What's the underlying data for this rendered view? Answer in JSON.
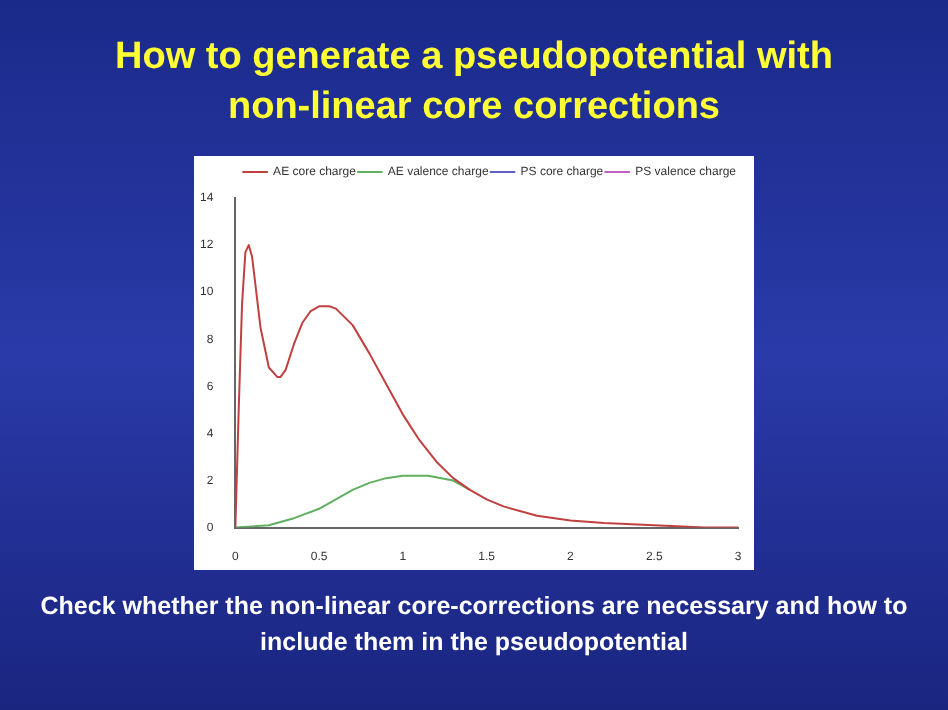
{
  "chart_data": {
    "type": "line",
    "title": "How to generate a pseudopotential with non-linear core corrections",
    "annotations": [
      "Check whether the non-linear core-corrections are necessary and how to include them in the pseudopotential"
    ],
    "xlim": [
      0,
      3
    ],
    "xticks": [
      0,
      0.5,
      1,
      1.5,
      2,
      2.5,
      3
    ],
    "ylim": [
      0,
      14
    ],
    "yticks": [
      0,
      2,
      4,
      6,
      8,
      10,
      12,
      14
    ],
    "grid": false,
    "legend": "top right",
    "marker": "none",
    "line_style": "solid",
    "series": [
      {
        "name": "AE core charge",
        "color": "#c04040",
        "x": [
          0,
          0.02,
          0.04,
          0.06,
          0.08,
          0.1,
          0.12,
          0.15,
          0.2,
          0.25,
          0.27,
          0.3,
          0.35,
          0.4,
          0.45,
          0.5,
          0.56,
          0.6,
          0.7,
          0.8,
          0.9,
          1.0,
          1.1,
          1.2,
          1.3,
          1.4,
          1.5,
          1.6,
          1.8,
          2.0,
          2.2,
          2.5,
          2.8,
          3.0
        ],
        "values": [
          0,
          5,
          9.5,
          11.7,
          12,
          11.5,
          10.3,
          8.5,
          6.8,
          6.4,
          6.4,
          6.7,
          7.8,
          8.7,
          9.2,
          9.4,
          9.4,
          9.3,
          8.6,
          7.4,
          6.1,
          4.8,
          3.7,
          2.8,
          2.1,
          1.6,
          1.2,
          0.9,
          0.5,
          0.3,
          0.2,
          0.1,
          0,
          0
        ]
      },
      {
        "name": "AE valence charge",
        "color": "#60b060",
        "x": [
          0,
          0.2,
          0.35,
          0.5,
          0.6,
          0.7,
          0.8,
          0.9,
          1.0,
          1.15,
          1.3,
          1.4
        ],
        "values": [
          0,
          0.1,
          0.4,
          0.8,
          1.2,
          1.6,
          1.9,
          2.1,
          2.2,
          2.2,
          2.0,
          1.6
        ]
      },
      {
        "name": "PS core charge",
        "color": "#6060c0"
      },
      {
        "name": "PS valence charge",
        "color": "#c060c0"
      }
    ]
  }
}
